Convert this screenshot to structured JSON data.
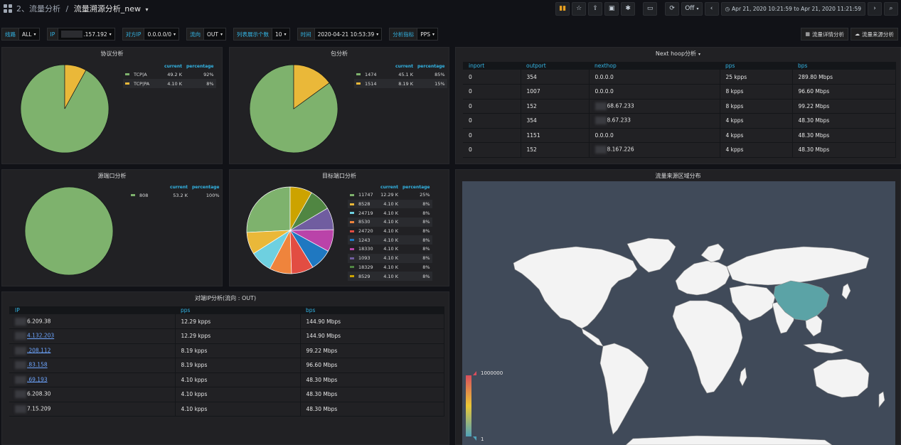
{
  "topbar": {
    "breadcrumb_folder": "2、流量分析",
    "breadcrumb_separator": "/",
    "dashboard_title": "流量溯源分析_new",
    "refresh_label": "Off",
    "time_range": "Apr 21, 2020 10:21:59 to Apr 21, 2020 11:21:59"
  },
  "variables": [
    {
      "label": "线路",
      "value": "ALL"
    },
    {
      "label": "IP",
      "value": ".157.192"
    },
    {
      "label": "对方IP",
      "value": "0.0.0.0/0"
    },
    {
      "label": "流向",
      "value": "OUT"
    },
    {
      "label": "列表展示个数",
      "value": "10"
    },
    {
      "label": "时间",
      "value": "2020-04-21 10:53:39"
    },
    {
      "label": "分析指标",
      "value": "PPS"
    }
  ],
  "dash_links": [
    {
      "icon": "th-large-icon",
      "label": "流量详情分析"
    },
    {
      "icon": "cloud-icon",
      "label": "流量来源分析"
    }
  ],
  "colors": {
    "green": "#7eb26d",
    "yellow": "#eab839",
    "cyan": "#6ed0e0",
    "orange": "#ef843c",
    "red": "#e24d42",
    "blue": "#1f78c1",
    "pink": "#ba43a9",
    "purple": "#705da0",
    "dark_green": "#508642",
    "dark_yellow": "#cca300",
    "accent": "#33b5e5",
    "highlight_country": "#5ba3a6"
  },
  "pie_panels": {
    "protocol": {
      "title": "协议分析",
      "col_current": "current",
      "col_percentage": "percentage",
      "rows": [
        {
          "name": "TCP|A",
          "current": "49.2 K",
          "percentage": "92%",
          "color": "#7eb26d"
        },
        {
          "name": "TCP|PA",
          "current": "4.10 K",
          "percentage": "8%",
          "color": "#eab839"
        }
      ]
    },
    "packet": {
      "title": "包分析",
      "col_current": "current",
      "col_percentage": "percentage",
      "rows": [
        {
          "name": "1474",
          "current": "45.1 K",
          "percentage": "85%",
          "color": "#7eb26d"
        },
        {
          "name": "1514",
          "current": "8.19 K",
          "percentage": "15%",
          "color": "#eab839"
        }
      ]
    },
    "src_port": {
      "title": "源端口分析",
      "col_current": "current",
      "col_percentage": "percentage",
      "rows": [
        {
          "name": "808",
          "current": "53.2 K",
          "percentage": "100%",
          "color": "#7eb26d"
        }
      ]
    },
    "dst_port": {
      "title": "目标端口分析",
      "col_current": "current",
      "col_percentage": "percentage",
      "rows": [
        {
          "name": "11747",
          "current": "12.29 K",
          "percentage": "25%",
          "color": "#7eb26d"
        },
        {
          "name": "8528",
          "current": "4.10 K",
          "percentage": "8%",
          "color": "#eab839"
        },
        {
          "name": "24719",
          "current": "4.10 K",
          "percentage": "8%",
          "color": "#6ed0e0"
        },
        {
          "name": "8530",
          "current": "4.10 K",
          "percentage": "8%",
          "color": "#ef843c"
        },
        {
          "name": "24720",
          "current": "4.10 K",
          "percentage": "8%",
          "color": "#e24d42"
        },
        {
          "name": "1243",
          "current": "4.10 K",
          "percentage": "8%",
          "color": "#1f78c1"
        },
        {
          "name": "18330",
          "current": "4.10 K",
          "percentage": "8%",
          "color": "#ba43a9"
        },
        {
          "name": "1093",
          "current": "4.10 K",
          "percentage": "8%",
          "color": "#705da0"
        },
        {
          "name": "18329",
          "current": "4.10 K",
          "percentage": "8%",
          "color": "#508642"
        },
        {
          "name": "8529",
          "current": "4.10 K",
          "percentage": "8%",
          "color": "#cca300"
        }
      ]
    }
  },
  "peer_ip_table": {
    "title": "对端IP分析(流向 : OUT)",
    "columns": [
      "IP",
      "pps",
      "bps"
    ],
    "rows": [
      {
        "ip": "6.209.38",
        "link": false,
        "pps": "12.29 kpps",
        "bps": "144.90 Mbps"
      },
      {
        "ip": "4.132.203",
        "link": true,
        "pps": "12.29 kpps",
        "bps": "144.90 Mbps"
      },
      {
        "ip": ".208.112",
        "link": true,
        "pps": "8.19 kpps",
        "bps": "99.22 Mbps"
      },
      {
        "ip": ".83.158",
        "link": true,
        "pps": "8.19 kpps",
        "bps": "96.60 Mbps"
      },
      {
        "ip": ".69.193",
        "link": true,
        "pps": "4.10 kpps",
        "bps": "48.30 Mbps"
      },
      {
        "ip": "6.208.30",
        "link": false,
        "pps": "4.10 kpps",
        "bps": "48.30 Mbps"
      },
      {
        "ip": "7.15.209",
        "link": false,
        "pps": "4.10 kpps",
        "bps": "48.30 Mbps"
      }
    ]
  },
  "nexthop_table": {
    "title": "Next hoop分析",
    "columns": [
      "inport",
      "outport",
      "nexthop",
      "pps",
      "bps"
    ],
    "rows": [
      {
        "inport": "0",
        "outport": "354",
        "nexthop": "0.0.0.0",
        "pps": "25 kpps",
        "bps": "289.80 Mbps"
      },
      {
        "inport": "0",
        "outport": "1007",
        "nexthop": "0.0.0.0",
        "pps": "8 kpps",
        "bps": "96.60 Mbps"
      },
      {
        "inport": "0",
        "outport": "152",
        "nexthop": "68.67.233",
        "pps": "8 kpps",
        "bps": "99.22 Mbps"
      },
      {
        "inport": "0",
        "outport": "354",
        "nexthop": "8.67.233",
        "pps": "4 kpps",
        "bps": "48.30 Mbps"
      },
      {
        "inport": "0",
        "outport": "1151",
        "nexthop": "0.0.0.0",
        "pps": "4 kpps",
        "bps": "48.30 Mbps"
      },
      {
        "inport": "0",
        "outport": "152",
        "nexthop": "8.167.226",
        "pps": "4 kpps",
        "bps": "48.30 Mbps"
      }
    ]
  },
  "map_panel": {
    "title": "流量来源区域分布",
    "scale_max": "1000000",
    "scale_min": "1",
    "highlighted_region": "China"
  }
}
